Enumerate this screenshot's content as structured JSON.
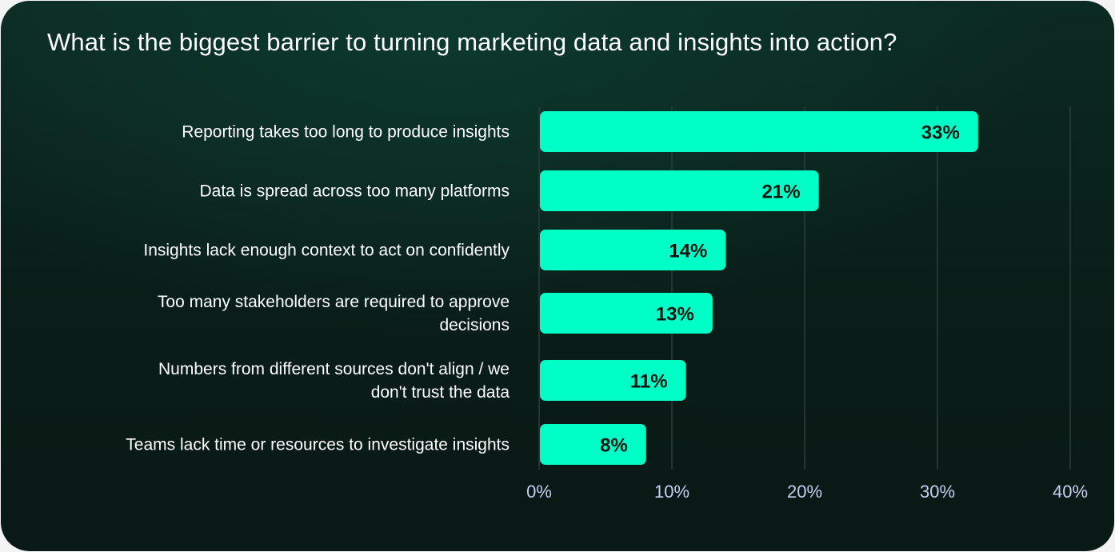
{
  "chart_data": {
    "type": "bar",
    "orientation": "horizontal",
    "title": "What is the biggest barrier to turning marketing data and insights into action?",
    "categories": [
      "Reporting takes too long to produce insights",
      "Data is spread across too many platforms",
      "Insights lack enough context to act on confidently",
      "Too many stakeholders are required to approve decisions",
      "Numbers from different sources don't align / we don't trust the data",
      "Teams lack time or resources to investigate insights"
    ],
    "category_lines": [
      [
        "Reporting takes too long to produce insights"
      ],
      [
        "Data is spread across too many platforms"
      ],
      [
        "Insights lack enough context to act on confidently"
      ],
      [
        "Too many stakeholders are required to approve",
        "decisions"
      ],
      [
        "Numbers from different sources don't align / we",
        "don't trust the data"
      ],
      [
        "Teams lack time or resources to investigate insights"
      ]
    ],
    "values": [
      33,
      21,
      14,
      13,
      11,
      8
    ],
    "data_labels": [
      "33%",
      "21%",
      "14%",
      "13%",
      "11%",
      "8%"
    ],
    "xlim": [
      0,
      40
    ],
    "ticks": [
      0,
      10,
      20,
      30,
      40
    ],
    "tick_labels": [
      "0%",
      "10%",
      "20%",
      "30%",
      "40%"
    ],
    "grid": true,
    "xlabel": "",
    "ylabel": "",
    "colors": {
      "bar": "#00ffc6",
      "grid": "#2a3f39",
      "tick_text": "#c9cdf2",
      "label_text": "#ffffff",
      "value_text": "#061612"
    }
  }
}
